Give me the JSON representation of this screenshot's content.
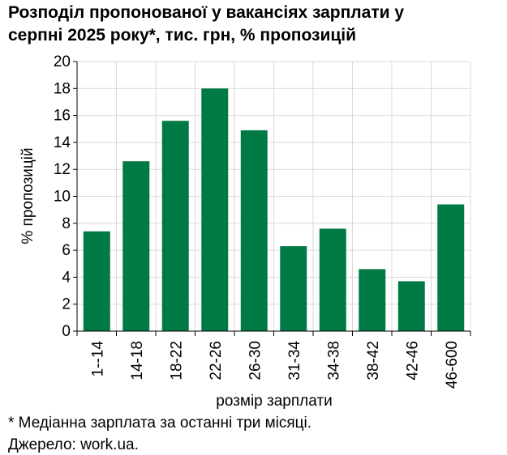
{
  "title_lines": [
    "Розподіл пропонованої у вакансіях зарплати у",
    "серпні 2025 року*, тис. грн, % пропозицій"
  ],
  "footnote": "* Медіанна зарплата за останні три місяці.",
  "source": "Джерело: work.ua.",
  "colors": {
    "bar": "#007a45",
    "grid": "#d9d9d9",
    "axis": "#000000"
  },
  "chart_data": {
    "type": "bar",
    "title": "Розподіл пропонованої у вакансіях зарплати у серпні 2025 року*, тис. грн, % пропозицій",
    "xlabel": "розмір зарплати",
    "ylabel": "% пропозицій",
    "categories": [
      "1--14",
      "14-18",
      "18-22",
      "22-26",
      "26-30",
      "31-34",
      "34-38",
      "38-42",
      "42-46",
      "46-600"
    ],
    "values": [
      7.4,
      12.6,
      15.6,
      18.0,
      14.9,
      6.3,
      7.6,
      4.6,
      3.7,
      9.4
    ],
    "ylim": [
      0,
      20
    ],
    "yticks": [
      0,
      2,
      4,
      6,
      8,
      10,
      12,
      14,
      16,
      18,
      20
    ],
    "grid": true,
    "legend": "none"
  }
}
